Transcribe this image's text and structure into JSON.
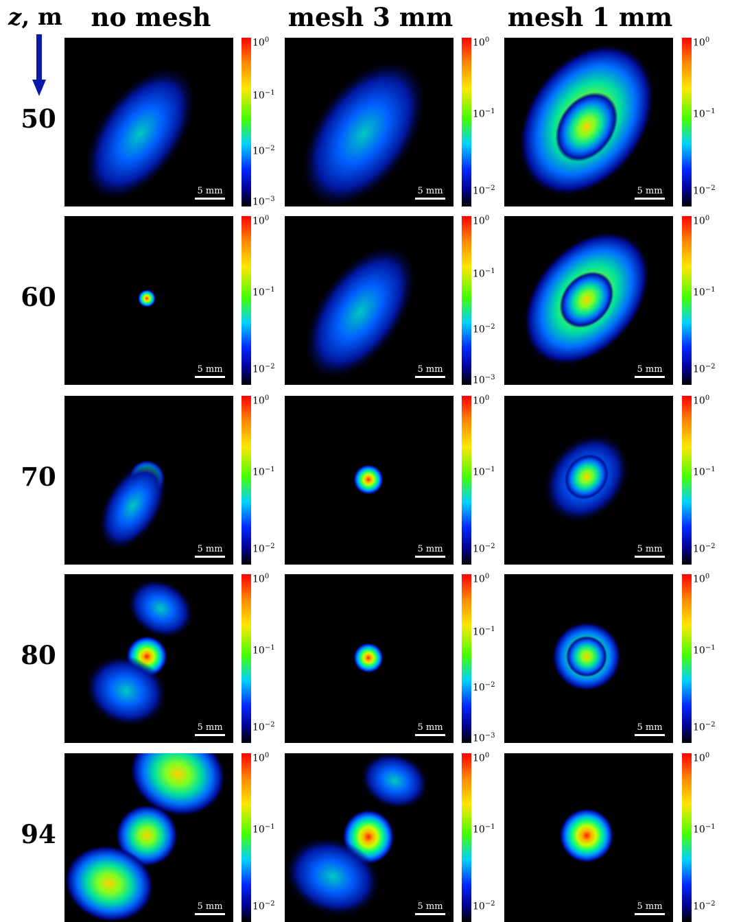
{
  "header": {
    "z_label_var": "z",
    "z_label_unit": ", m",
    "columns": [
      "no mesh",
      "mesh 3 mm",
      "mesh 1 mm"
    ]
  },
  "colors": {
    "arrow": "#0a1aa8"
  },
  "scale_bar_label": "5 mm",
  "rows": [
    {
      "z": "50",
      "cbars": [
        [
          "10",
          "0",
          "-1",
          "-2",
          "-3"
        ],
        [
          "0",
          "-1",
          "-2"
        ],
        [
          "0",
          "-1",
          "-2"
        ]
      ]
    },
    {
      "z": "60",
      "cbars": [
        [
          "0",
          "-1",
          "-2"
        ],
        [
          "0",
          "-1",
          "-2",
          "-3"
        ],
        [
          "0",
          "-1",
          "-2"
        ]
      ]
    },
    {
      "z": "70",
      "cbars": [
        [
          "0",
          "-1",
          "-2"
        ],
        [
          "0",
          "-1",
          "-2"
        ],
        [
          "0",
          "-1",
          "-2"
        ]
      ]
    },
    {
      "z": "80",
      "cbars": [
        [
          "0",
          "-1",
          "-2"
        ],
        [
          "0",
          "-1",
          "-2",
          "-3"
        ],
        [
          "0",
          "-1",
          "-2"
        ]
      ]
    },
    {
      "z": "94",
      "cbars": [
        [
          "0",
          "-1",
          "-2"
        ],
        [
          "0",
          "-1",
          "-2"
        ],
        [
          "0",
          "-1",
          "-2"
        ]
      ]
    }
  ]
}
